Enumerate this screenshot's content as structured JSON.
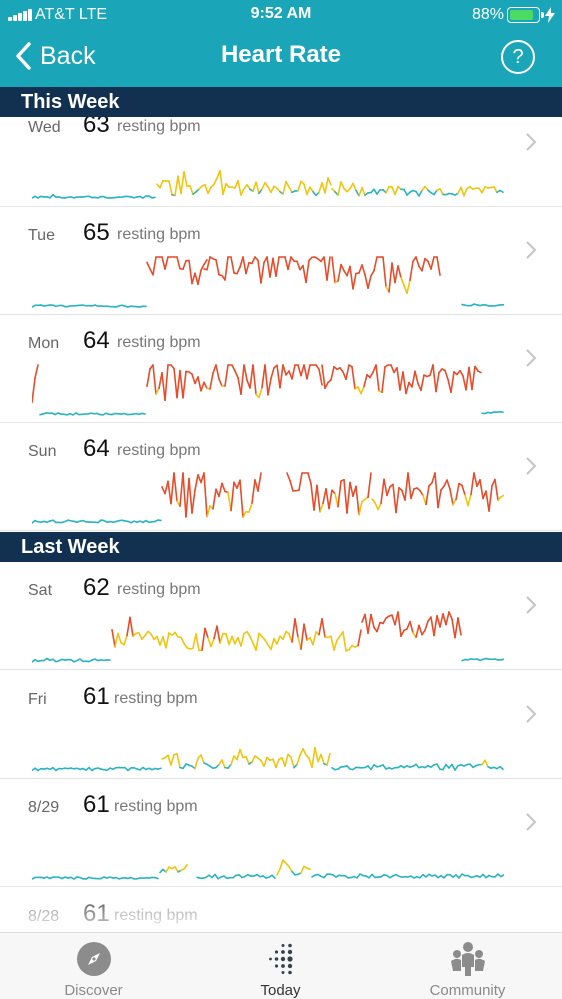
{
  "status_bar": {
    "carrier": "AT&T  LTE",
    "time": "9:52 AM",
    "battery": "88%",
    "battery_level": 0.88
  },
  "header": {
    "back_label": "Back",
    "title": "Heart Rate",
    "help_label": "?"
  },
  "sections": [
    {
      "title": "This Week"
    },
    {
      "title": "Last Week"
    }
  ],
  "days": [
    {
      "label": "Wed",
      "value": "63",
      "unit": "resting bpm"
    },
    {
      "label": "Tue",
      "value": "65",
      "unit": "resting bpm"
    },
    {
      "label": "Mon",
      "value": "64",
      "unit": "resting bpm"
    },
    {
      "label": "Sun",
      "value": "64",
      "unit": "resting bpm"
    },
    {
      "label": "Sat",
      "value": "62",
      "unit": "resting bpm"
    },
    {
      "label": "Fri",
      "value": "61",
      "unit": "resting bpm"
    },
    {
      "label": "8/29",
      "value": "61",
      "unit": "resting bpm"
    },
    {
      "label": "8/28",
      "value": "61",
      "unit": "resting bpm"
    }
  ],
  "tabs": [
    {
      "label": "Discover",
      "icon": "compass-icon"
    },
    {
      "label": "Today",
      "icon": "fitbit-dots-icon",
      "active": true
    },
    {
      "label": "Community",
      "icon": "community-people-icon"
    }
  ],
  "colors": {
    "header": "#1aa6b8",
    "section": "#123050",
    "resting": "#2bb3c0",
    "elevated": "#f1c40f",
    "peak": "#e74c2b"
  }
}
